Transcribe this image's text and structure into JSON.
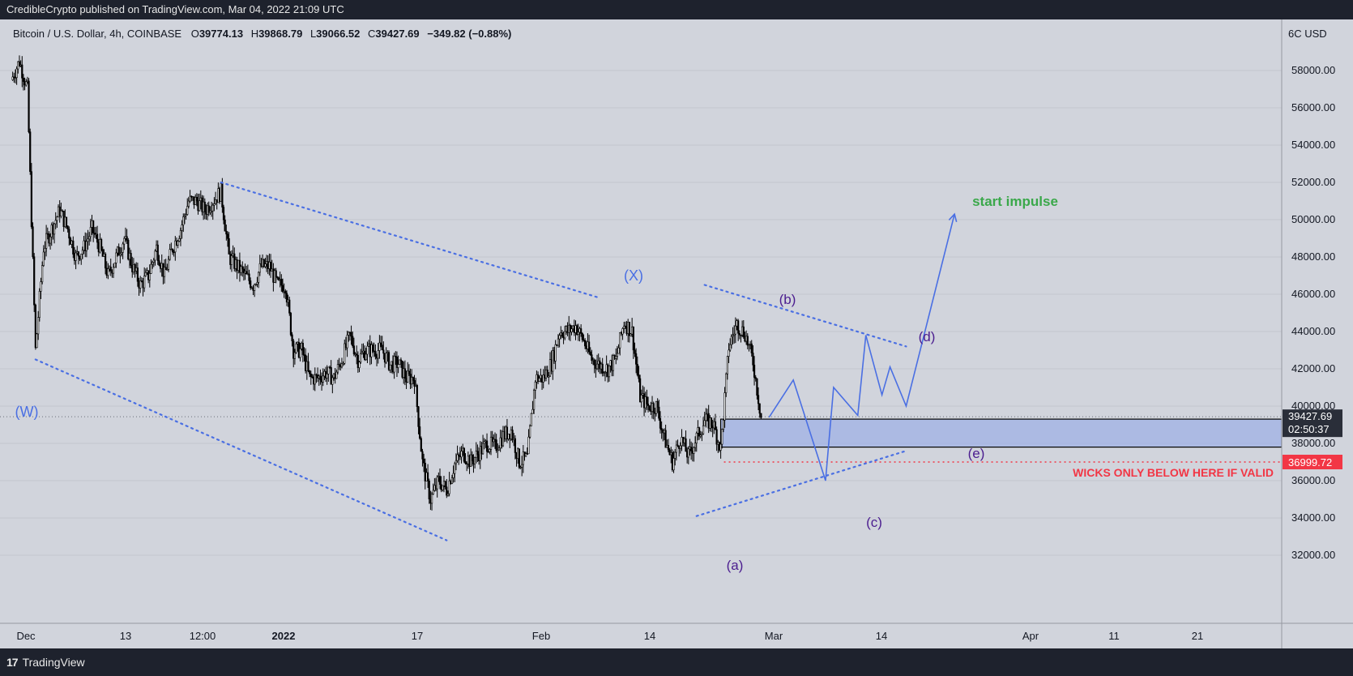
{
  "header": {
    "published_by": "CredibleCrypto published on TradingView.com, Mar 04, 2022 21:09 UTC"
  },
  "footer": {
    "brand": "TradingView",
    "logo_icon": "tradingview-logo-icon"
  },
  "symbol": {
    "name": "Bitcoin / U.S. Dollar, 4h, COINBASE",
    "open_label": "O",
    "open": "39774.13",
    "high_label": "H",
    "high": "39868.79",
    "low_label": "L",
    "low": "39066.52",
    "close_label": "C",
    "close": "39427.69",
    "change": "−349.82 (−0.88%)"
  },
  "price_axis": {
    "currency": "6C USD",
    "current_price": "39427.69",
    "countdown": "02:50:37",
    "level_label": "36999.72",
    "current_color": "#2a2e39",
    "level_color": "#f23645"
  },
  "annotations": {
    "w": "(W)",
    "x": "(X)",
    "a": "(a)",
    "b": "(b)",
    "c": "(c)",
    "d": "(d)",
    "e": "(e)",
    "start_impulse": "start impulse",
    "wicks_note": "WICKS ONLY BELOW HERE IF VALID",
    "wave_color": "#4a6fe3",
    "sub_wave_color": "#4b1d8f",
    "impulse_color": "#3aa84a",
    "note_color": "#f23645"
  },
  "chart_data": {
    "type": "candlestick",
    "title": "Bitcoin / U.S. Dollar, 4h, COINBASE",
    "ylabel": "USD",
    "ylim": [
      31000,
      60000
    ],
    "y_ticks": [
      32000,
      34000,
      36000,
      38000,
      40000,
      42000,
      44000,
      46000,
      48000,
      50000,
      52000,
      54000,
      56000,
      58000
    ],
    "x_tick_labels": [
      "Dec",
      "13",
      "12:00",
      "2022",
      "17",
      "Feb",
      "14",
      "Mar",
      "14",
      "Apr",
      "11",
      "21"
    ],
    "price_path": [
      [
        "Dec 01",
        57500
      ],
      [
        "Dec 02",
        58500
      ],
      [
        "Dec 03",
        57000
      ],
      [
        "Dec 04",
        43000
      ],
      [
        "Dec 05",
        48500
      ],
      [
        "Dec 06",
        49500
      ],
      [
        "Dec 07",
        50500
      ],
      [
        "Dec 08",
        49500
      ],
      [
        "Dec 09",
        48000
      ],
      [
        "Dec 10",
        48500
      ],
      [
        "Dec 11",
        49500
      ],
      [
        "Dec 12",
        48500
      ],
      [
        "Dec 13",
        47000
      ],
      [
        "Dec 14",
        48000
      ],
      [
        "Dec 15",
        49000
      ],
      [
        "Dec 16",
        47500
      ],
      [
        "Dec 17",
        46500
      ],
      [
        "Dec 18",
        47000
      ],
      [
        "Dec 19",
        48500
      ],
      [
        "Dec 20",
        47000
      ],
      [
        "Dec 21",
        48500
      ],
      [
        "Dec 22",
        49500
      ],
      [
        "Dec 23",
        51000
      ],
      [
        "Dec 24",
        51000
      ],
      [
        "Dec 25",
        50500
      ],
      [
        "Dec 26",
        51000
      ],
      [
        "Dec 27",
        51500
      ],
      [
        "Dec 28",
        48000
      ],
      [
        "Dec 29",
        47500
      ],
      [
        "Dec 30",
        47000
      ],
      [
        "Dec 31",
        46500
      ],
      [
        "Jan 01",
        47500
      ],
      [
        "Jan 02",
        47500
      ],
      [
        "Jan 03",
        46500
      ],
      [
        "Jan 04",
        46500
      ],
      [
        "Jan 05",
        43000
      ],
      [
        "Jan 06",
        43000
      ],
      [
        "Jan 07",
        41500
      ],
      [
        "Jan 08",
        41500
      ],
      [
        "Jan 09",
        41800
      ],
      [
        "Jan 10",
        41500
      ],
      [
        "Jan 11",
        42500
      ],
      [
        "Jan 12",
        43800
      ],
      [
        "Jan 13",
        42500
      ],
      [
        "Jan 14",
        43000
      ],
      [
        "Jan 15",
        43000
      ],
      [
        "Jan 16",
        43000
      ],
      [
        "Jan 17",
        42200
      ],
      [
        "Jan 18",
        42300
      ],
      [
        "Jan 19",
        41500
      ],
      [
        "Jan 20",
        41500
      ],
      [
        "Jan 21",
        37000
      ],
      [
        "Jan 22",
        35000
      ],
      [
        "Jan 23",
        36000
      ],
      [
        "Jan 24",
        35500
      ],
      [
        "Jan 25",
        36900
      ],
      [
        "Jan 26",
        37500
      ],
      [
        "Jan 27",
        37000
      ],
      [
        "Jan 28",
        37500
      ],
      [
        "Jan 29",
        38000
      ],
      [
        "Jan 30",
        37800
      ],
      [
        "Jan 31",
        38400
      ],
      [
        "Feb 01",
        38700
      ],
      [
        "Feb 02",
        37000
      ],
      [
        "Feb 03",
        37200
      ],
      [
        "Feb 04",
        41500
      ],
      [
        "Feb 05",
        41500
      ],
      [
        "Feb 06",
        42300
      ],
      [
        "Feb 07",
        44000
      ],
      [
        "Feb 08",
        44000
      ],
      [
        "Feb 09",
        44300
      ],
      [
        "Feb 10",
        43500
      ],
      [
        "Feb 11",
        42500
      ],
      [
        "Feb 12",
        42200
      ],
      [
        "Feb 13",
        42000
      ],
      [
        "Feb 14",
        42500
      ],
      [
        "Feb 15",
        44500
      ],
      [
        "Feb 16",
        44000
      ],
      [
        "Feb 17",
        40500
      ],
      [
        "Feb 18",
        40000
      ],
      [
        "Feb 19",
        40000
      ],
      [
        "Feb 20",
        38300
      ],
      [
        "Feb 21",
        37000
      ],
      [
        "Feb 22",
        38300
      ],
      [
        "Feb 23",
        37300
      ],
      [
        "Feb 24",
        38300
      ],
      [
        "Feb 25",
        39200
      ],
      [
        "Feb 26",
        39100
      ],
      [
        "Feb 27",
        37700
      ],
      [
        "Feb 28",
        43200
      ],
      [
        "Mar 01",
        44400
      ],
      [
        "Mar 02",
        43900
      ],
      [
        "Mar 03",
        42400
      ],
      [
        "Mar 04",
        39427.69
      ]
    ],
    "current_price": 39427.69,
    "levels": [
      {
        "label": "36999.72",
        "value": 36999.72
      }
    ],
    "zone": {
      "from_date": "Feb 28",
      "to_date": "Apr 30",
      "low": 37800,
      "high": 39300
    },
    "trendlines": [
      {
        "from": [
          "Dec 04",
          42500
        ],
        "to": [
          "Jan 24",
          32800
        ]
      },
      {
        "from": [
          "Dec 27",
          52000
        ],
        "to": [
          "Feb 12",
          45800
        ]
      },
      {
        "from": [
          "Feb 24",
          34100
        ],
        "to": [
          "Mar 22",
          37600
        ]
      },
      {
        "from": [
          "Feb 25",
          46500
        ],
        "to": [
          "Mar 22",
          43200
        ]
      }
    ],
    "projection": [
      [
        "Mar 05",
        39400
      ],
      [
        "Mar 08",
        41400
      ],
      [
        "Mar 12",
        36000
      ],
      [
        "Mar 13",
        41000
      ],
      [
        "Mar 16",
        39500
      ],
      [
        "Mar 17",
        43800
      ],
      [
        "Mar 19",
        40600
      ],
      [
        "Mar 20",
        42100
      ],
      [
        "Mar 22",
        40000
      ],
      [
        "Mar 28",
        50300
      ]
    ]
  }
}
